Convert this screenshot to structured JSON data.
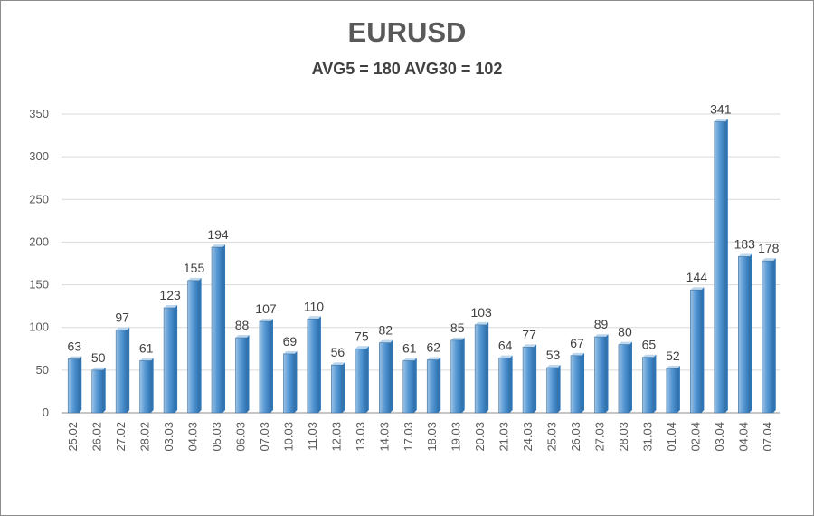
{
  "chart_data": {
    "type": "bar",
    "title": "EURUSD",
    "subtitle": "AVG5 = 180 AVG30 = 102",
    "xlabel": "",
    "ylabel": "",
    "ylim": [
      0,
      350
    ],
    "yticks": [
      0,
      50,
      100,
      150,
      200,
      250,
      300,
      350
    ],
    "grid": true,
    "categories": [
      "25.02",
      "26.02",
      "27.02",
      "28.02",
      "03.03",
      "04.03",
      "05.03",
      "06.03",
      "07.03",
      "10.03",
      "11.03",
      "12.03",
      "13.03",
      "14.03",
      "17.03",
      "18.03",
      "19.03",
      "20.03",
      "21.03",
      "24.03",
      "25.03",
      "26.03",
      "27.03",
      "28.03",
      "31.03",
      "01.04",
      "02.04",
      "03.04",
      "04.04",
      "07.04"
    ],
    "values": [
      63,
      50,
      97,
      61,
      123,
      155,
      194,
      88,
      107,
      69,
      110,
      56,
      75,
      82,
      61,
      62,
      85,
      103,
      64,
      77,
      53,
      67,
      89,
      80,
      65,
      52,
      144,
      341,
      183,
      178
    ],
    "colors": {
      "bar_light": "#9dc3e6",
      "bar_mid": "#5b9bd5",
      "bar_dark": "#2e75b6",
      "bar_top": "#bdd7ee",
      "grid": "#d9d9d9",
      "axis": "#8c8c8c"
    }
  }
}
